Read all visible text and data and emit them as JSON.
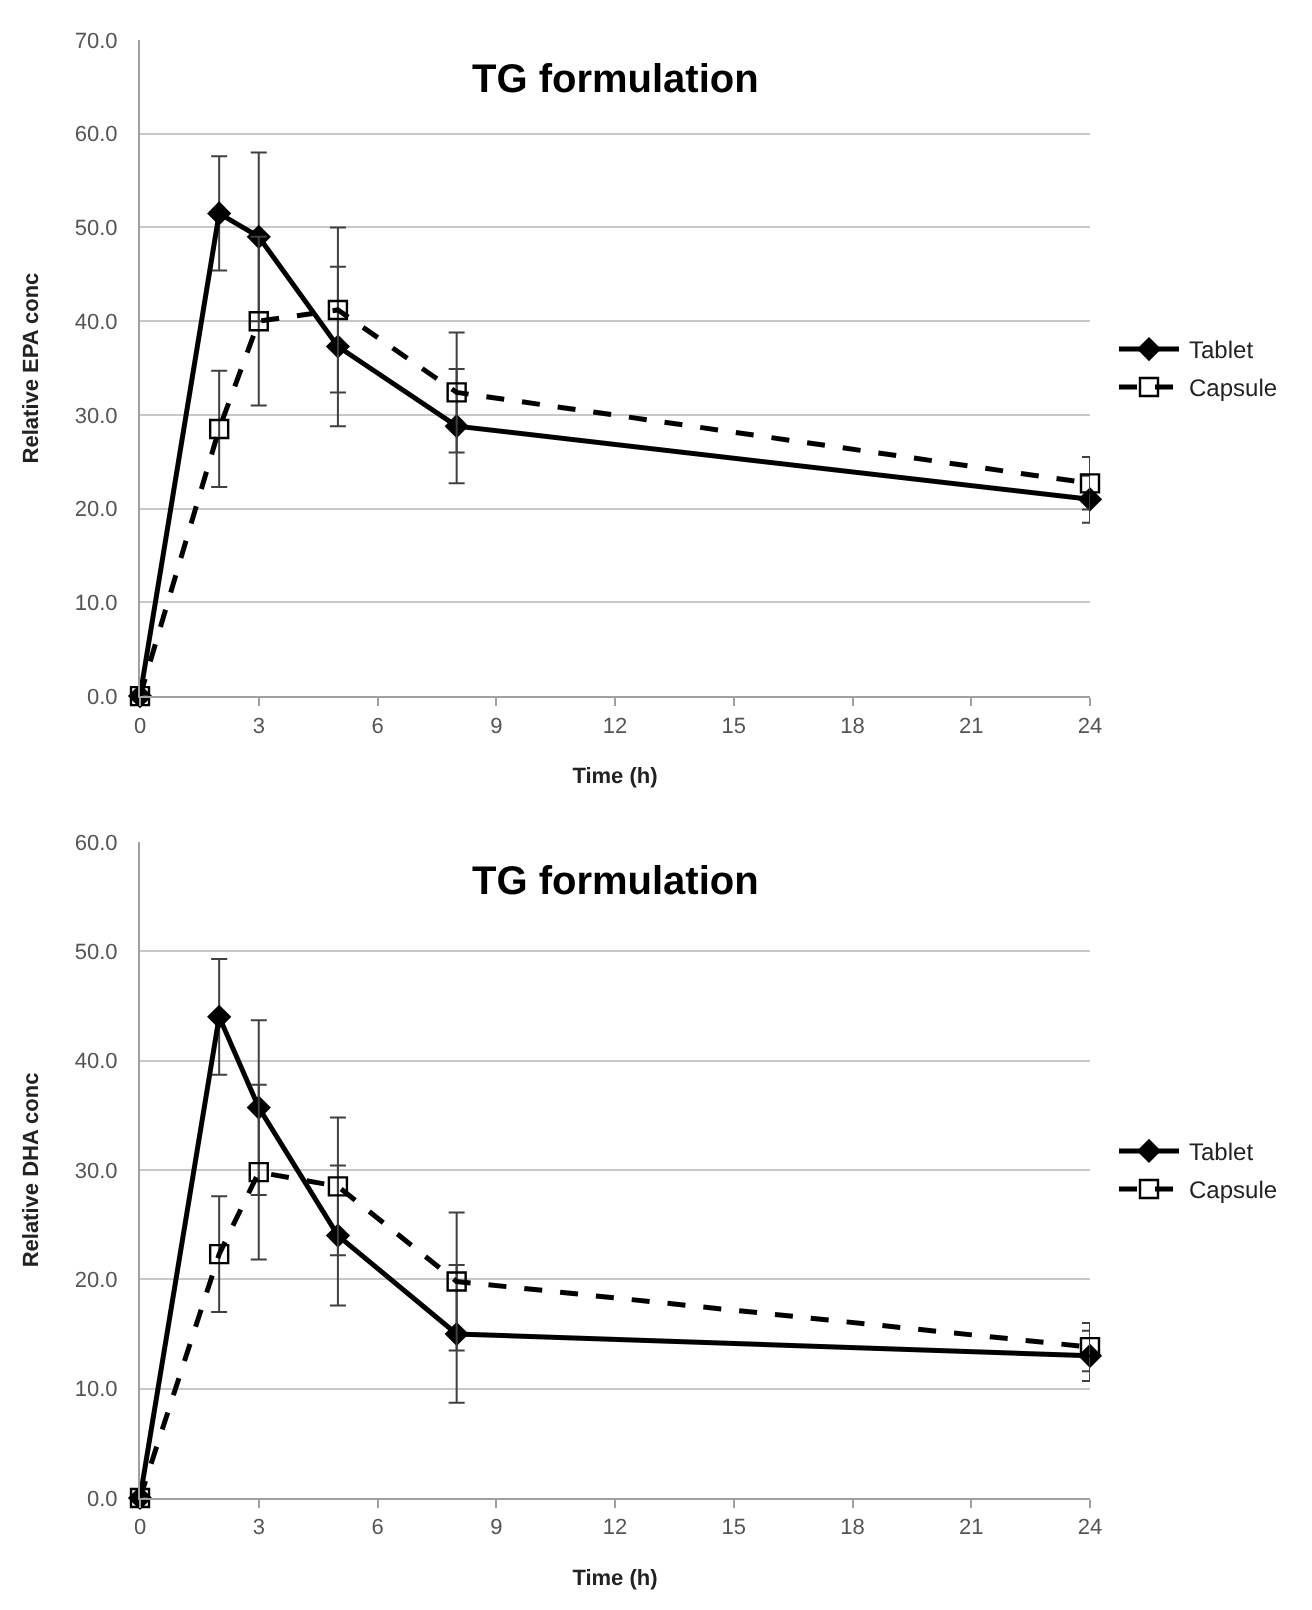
{
  "chart_data": [
    {
      "type": "line",
      "title": "TG formulation",
      "xlabel": "Time (h)",
      "ylabel": "Relative EPA conc",
      "x": [
        0,
        2,
        3,
        5,
        8,
        24
      ],
      "series": [
        {
          "name": "Tablet",
          "color": "#000000",
          "values": [
            0,
            51.5,
            49,
            37.3,
            28.8,
            21
          ],
          "errors": [
            null,
            6.1,
            9,
            8.5,
            6.1,
            2.5
          ],
          "marker": "diamond",
          "line_style": "solid"
        },
        {
          "name": "Capsule",
          "color": "#000000",
          "values": [
            0,
            28.5,
            40,
            41.2,
            32.4,
            22.7
          ],
          "errors": [
            null,
            6.2,
            9,
            8.8,
            6.4,
            2.8
          ],
          "marker": "square",
          "line_style": "dashed"
        }
      ],
      "xlim": [
        0,
        24
      ],
      "xticks": [
        0,
        3,
        6,
        9,
        12,
        15,
        18,
        21,
        24
      ],
      "ylim": [
        0,
        70
      ],
      "yticks": [
        {
          "value": 0,
          "label": "0.0"
        },
        {
          "value": 10,
          "label": "10.0"
        },
        {
          "value": 20,
          "label": "20.0"
        },
        {
          "value": 30,
          "label": "30.0"
        },
        {
          "value": 40,
          "label": "40.0"
        },
        {
          "value": 50,
          "label": "50.0"
        },
        {
          "value": 60,
          "label": "60.0"
        },
        {
          "value": 70,
          "label": "70.0"
        }
      ],
      "grid": "y",
      "legend": "right"
    },
    {
      "type": "line",
      "title": "TG formulation",
      "xlabel": "Time (h)",
      "ylabel": "Relative DHA conc",
      "x": [
        0,
        2,
        3,
        5,
        8,
        24
      ],
      "series": [
        {
          "name": "Tablet",
          "color": "#000000",
          "values": [
            0,
            44,
            35.7,
            24,
            15,
            13
          ],
          "errors": [
            null,
            5.3,
            8,
            6.4,
            6.3,
            2.3
          ],
          "marker": "diamond",
          "line_style": "solid"
        },
        {
          "name": "Capsule",
          "color": "#000000",
          "values": [
            0,
            22.3,
            29.8,
            28.5,
            19.8,
            13.8
          ],
          "errors": [
            null,
            5.3,
            8,
            6.3,
            6.3,
            2.2
          ],
          "marker": "square",
          "line_style": "dashed"
        }
      ],
      "xlim": [
        0,
        24
      ],
      "xticks": [
        0,
        3,
        6,
        9,
        12,
        15,
        18,
        21,
        24
      ],
      "ylim": [
        0,
        60
      ],
      "yticks": [
        {
          "value": 0,
          "label": "0.0"
        },
        {
          "value": 10,
          "label": "10.0"
        },
        {
          "value": 20,
          "label": "20.0"
        },
        {
          "value": 30,
          "label": "30.0"
        },
        {
          "value": 40,
          "label": "40.0"
        },
        {
          "value": 50,
          "label": "50.0"
        },
        {
          "value": 60,
          "label": "60.0"
        }
      ],
      "grid": "y",
      "legend": "right"
    }
  ]
}
